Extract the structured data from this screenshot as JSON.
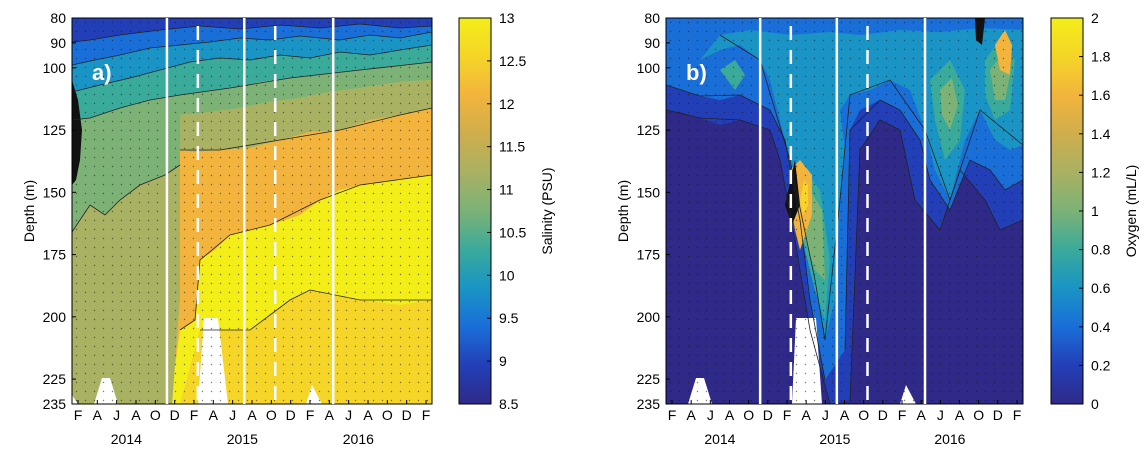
{
  "chart_data": [
    {
      "type": "heatmap",
      "subtype": "filled-contour",
      "panel_label": "a)",
      "ylabel": "Depth (m)",
      "xlabel": "",
      "y_ticks": [
        80,
        90,
        100,
        125,
        150,
        175,
        200,
        225,
        235
      ],
      "ylim": [
        80,
        235
      ],
      "y_inverted": true,
      "x_tick_labels": [
        "F",
        "A",
        "J",
        "A",
        "O",
        "D",
        "F",
        "A",
        "J",
        "A",
        "O",
        "D",
        "F",
        "A",
        "J",
        "A",
        "O",
        "D",
        "F"
      ],
      "x_year_labels": [
        "2014",
        "2015",
        "2016"
      ],
      "colorbar": {
        "label": "Salinity (PSU)",
        "ticks": [
          13,
          12.5,
          12,
          11.5,
          11,
          10.5,
          10,
          9.5,
          9,
          8.5
        ],
        "range": [
          8.5,
          13
        ]
      },
      "series": [
        {
          "name": "",
          "contour_level": 9.5,
          "x_month_index": [
            0,
            2,
            4,
            6,
            8,
            10,
            12,
            14,
            16,
            18
          ],
          "depth": [
            90,
            88,
            89,
            86,
            85,
            84,
            86,
            85,
            84,
            84
          ]
        },
        {
          "name": "",
          "contour_level": 10,
          "x_month_index": [
            0,
            2,
            4,
            6,
            8,
            10,
            12,
            14,
            16,
            18
          ],
          "depth": [
            110,
            104,
            102,
            98,
            95,
            94,
            95,
            94,
            93,
            92
          ]
        },
        {
          "name": "",
          "contour_level": 10.5,
          "x_month_index": [
            0,
            2,
            4,
            6,
            8,
            10,
            12,
            14,
            16,
            18
          ],
          "depth": [
            125,
            122,
            120,
            118,
            112,
            110,
            110,
            106,
            104,
            100
          ]
        },
        {
          "name": "",
          "contour_level": 11,
          "x_month_index": [
            0,
            2,
            4,
            6,
            8,
            10,
            12,
            14,
            16,
            18
          ],
          "depth": [
            165,
            150,
            145,
            142,
            135,
            128,
            126,
            122,
            118,
            115
          ]
        },
        {
          "name": "",
          "contour_level": 12,
          "x_month_index": [
            0,
            2,
            4,
            6,
            8,
            10,
            12,
            14,
            16,
            18
          ],
          "depth": [
            235,
            235,
            235,
            232,
            170,
            158,
            155,
            148,
            145,
            143
          ]
        },
        {
          "name": "",
          "contour_level": 12.5,
          "x_month_index": [
            0,
            2,
            4,
            6,
            8,
            10,
            12,
            14,
            16,
            18
          ],
          "depth": [
            235,
            235,
            235,
            235,
            205,
            200,
            205,
            190,
            200,
            205
          ]
        }
      ],
      "vertical_lines": {
        "solid_month_index": [
          4.6,
          8.6,
          13.2
        ],
        "dashed_month_index": [
          6.2,
          10.2
        ]
      }
    },
    {
      "type": "heatmap",
      "subtype": "filled-contour",
      "panel_label": "b)",
      "ylabel": "Depth (m)",
      "xlabel": "",
      "y_ticks": [
        80,
        90,
        100,
        125,
        150,
        175,
        200,
        225,
        235
      ],
      "ylim": [
        80,
        235
      ],
      "y_inverted": true,
      "x_tick_labels": [
        "F",
        "A",
        "J",
        "A",
        "O",
        "D",
        "F",
        "A",
        "J",
        "A",
        "O",
        "D",
        "F",
        "A",
        "J",
        "A",
        "O",
        "D",
        "F"
      ],
      "x_year_labels": [
        "2014",
        "2015",
        "2016"
      ],
      "colorbar": {
        "label": "Oxygen (mL/L)",
        "ticks": [
          2,
          1.8,
          1.6,
          1.4,
          1.2,
          1,
          0.8,
          0.6,
          0.4,
          0.2,
          0
        ],
        "range": [
          0,
          2
        ]
      },
      "series": [
        {
          "name": "",
          "contour_level": 0.2,
          "x_month_index": [
            0,
            2,
            4,
            6,
            8,
            10,
            12,
            14,
            16,
            18
          ],
          "depth": [
            110,
            120,
            118,
            122,
            225,
            200,
            125,
            200,
            150,
            120
          ]
        },
        {
          "name": "",
          "contour_level": 1.0,
          "x_month_index": [
            6,
            7,
            8,
            9,
            14,
            15,
            16,
            17
          ],
          "depth": [
            160,
            150,
            155,
            200,
            110,
            130,
            120,
            100
          ]
        },
        {
          "name": "",
          "contour_level": 1.6,
          "x_month_index": [
            7,
            8,
            15,
            16,
            17
          ],
          "depth": [
            175,
            190,
            100,
            110,
            95
          ]
        }
      ],
      "vertical_lines": {
        "solid_month_index": [
          4.6,
          8.6,
          13.2
        ],
        "dashed_month_index": [
          6.2,
          10.2
        ]
      }
    }
  ],
  "colors": {
    "colormap": [
      "#2f2a88",
      "#233fb8",
      "#1a6ed8",
      "#1a94c4",
      "#3aaa9a",
      "#7cb276",
      "#a9b163",
      "#cfae4c",
      "#f2b43c",
      "#f5d528",
      "#f3ee18"
    ],
    "annotation_line": "#ffffff",
    "axis": "#000000"
  }
}
